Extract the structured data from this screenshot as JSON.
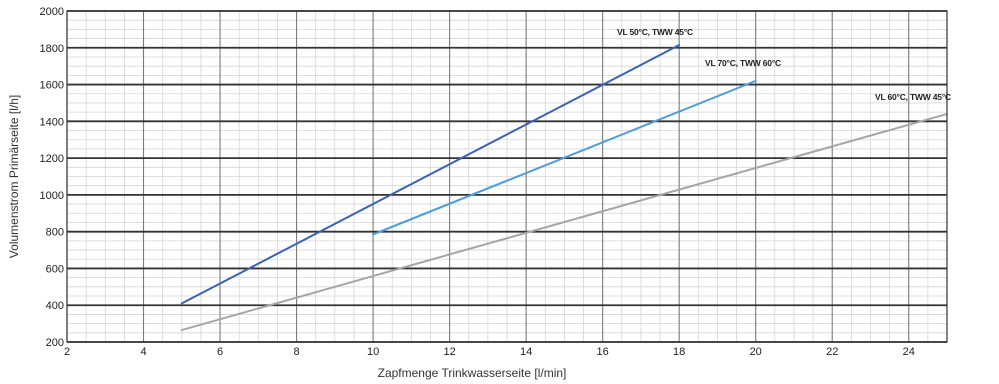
{
  "chart_data": {
    "type": "line",
    "title": "",
    "xlabel": "Zapfmenge Trinkwasserseite [l/min]",
    "ylabel": "Volumenstrom Primärseite [l/h]",
    "xlim": [
      2,
      25
    ],
    "ylim": [
      200,
      2000
    ],
    "x_ticks": [
      2,
      4,
      6,
      8,
      10,
      12,
      14,
      16,
      18,
      20,
      22,
      24
    ],
    "x_tick_labels": [
      "2",
      "4",
      "6",
      "8",
      "10",
      "12",
      "14",
      "16",
      "18",
      "20",
      "22",
      "24"
    ],
    "y_ticks": [
      200,
      400,
      600,
      800,
      1000,
      1200,
      1400,
      1600,
      1800,
      2000
    ],
    "y_tick_labels": [
      "200",
      "400",
      "600",
      "800",
      "1000",
      "1200",
      "1400",
      "1600",
      "1800",
      "2000"
    ],
    "grid": true,
    "legend": "none",
    "series": [
      {
        "name": "VL 50°C, TWW 45°C",
        "color": "#3a62b8",
        "x": [
          5,
          18
        ],
        "y": [
          410,
          1815
        ]
      },
      {
        "name": "VL 70°C, TWW 60°C",
        "color": "#4a9ee0",
        "x": [
          10,
          20
        ],
        "y": [
          785,
          1620
        ]
      },
      {
        "name": "VL 60°C, TWW 45°C",
        "color": "#a6a6a6",
        "x": [
          5,
          25
        ],
        "y": [
          265,
          1440
        ]
      }
    ]
  }
}
